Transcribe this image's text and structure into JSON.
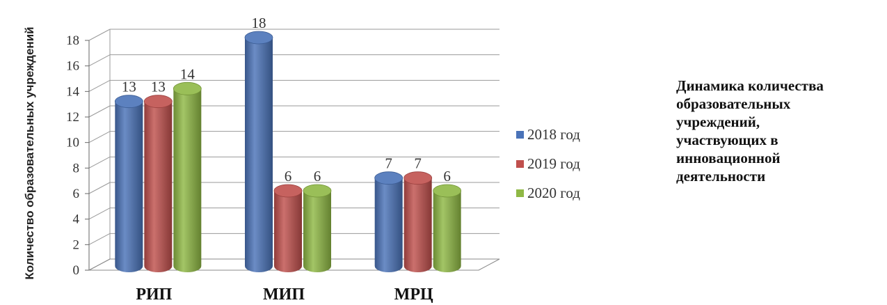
{
  "chart_data": {
    "type": "bar",
    "categories": [
      "РИП",
      "МИП",
      "МРЦ"
    ],
    "series": [
      {
        "name": "2018 год",
        "values": [
          13,
          18,
          7
        ],
        "color": "#4a73b8"
      },
      {
        "name": "2019 год",
        "values": [
          13,
          6,
          7
        ],
        "color": "#c0504d"
      },
      {
        "name": "2020 год",
        "values": [
          14,
          6,
          6
        ],
        "color": "#8fb845"
      }
    ],
    "ylim": [
      0,
      18
    ],
    "yticks": [
      "0",
      "2",
      "4",
      "6",
      "8",
      "10",
      "12",
      "14",
      "16",
      "18"
    ],
    "ylabel": "Количество образовательных учреждений",
    "xlabel": "",
    "grid": true,
    "legend": "right"
  },
  "caption": {
    "lines": [
      "Динамика количества",
      "образовательных",
      "учреждений,",
      "участвующих в",
      "инновационной",
      "деятельности"
    ]
  }
}
